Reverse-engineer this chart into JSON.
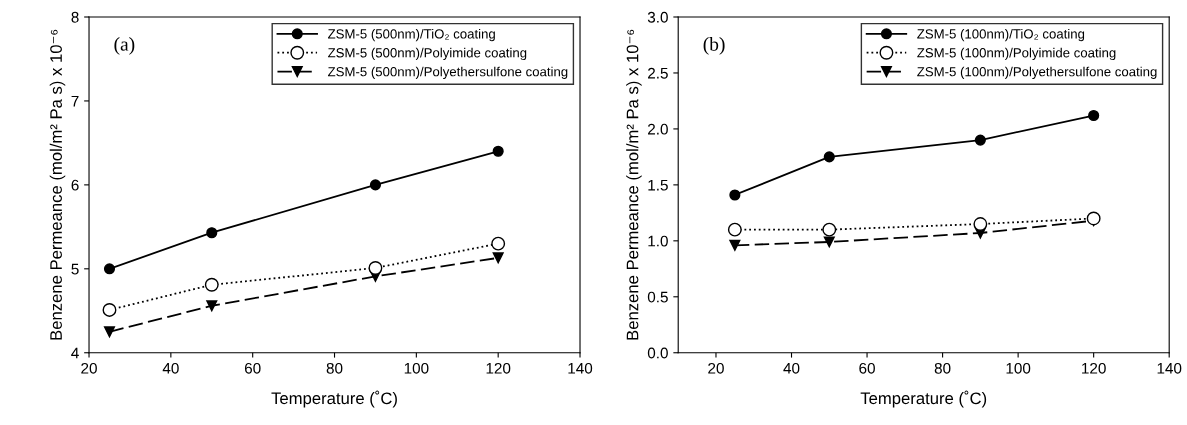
{
  "chart_data": [
    {
      "type": "line",
      "annotations": [
        "(a)"
      ],
      "xlabel": "Temperature (˚C)",
      "ylabel": "Benzene Permeance (mol/m² Pa s) x 10⁻⁶",
      "x": [
        25,
        50,
        90,
        120
      ],
      "xlim": [
        20,
        140
      ],
      "xticks": [
        20,
        40,
        60,
        80,
        100,
        120,
        140
      ],
      "ylim": [
        4,
        8
      ],
      "yticks": [
        4,
        5,
        6,
        7,
        8
      ],
      "grid": false,
      "legend": "top right",
      "series": [
        {
          "name": "ZSM-5 (500nm)/TiO₂ coating",
          "color": "#000000",
          "marker": "circle",
          "line_style": "solid",
          "values": [
            5.0,
            5.43,
            6.0,
            6.4
          ]
        },
        {
          "name": "ZSM-5 (500nm)/Polyimide coating",
          "color": "#000000",
          "marker": "circle",
          "line_style": "dotted",
          "values": [
            4.51,
            4.81,
            5.01,
            5.3
          ]
        },
        {
          "name": "ZSM-5 (500nm)/Polyethersulfone coating",
          "color": "#000000",
          "marker": "triangle",
          "line_style": "dashed",
          "values": [
            4.25,
            4.56,
            4.91,
            5.13
          ]
        }
      ]
    },
    {
      "type": "line",
      "annotations": [
        "(b)"
      ],
      "xlabel": "Temperature (˚C)",
      "ylabel": "Benzene Permeance (mol/m² Pa s) x 10⁻⁶",
      "x": [
        25,
        50,
        90,
        120
      ],
      "xlim": [
        10,
        140
      ],
      "xticks": [
        20,
        40,
        60,
        80,
        100,
        120,
        140
      ],
      "ylim": [
        0,
        3
      ],
      "yticks": [
        {
          "value": 0,
          "label": "0.0"
        },
        0.5,
        {
          "value": 1,
          "label": "1.0"
        },
        1.5,
        {
          "value": 2,
          "label": "2.0"
        },
        2.5,
        {
          "value": 3,
          "label": "3.0"
        }
      ],
      "grid": false,
      "legend": "top right",
      "series": [
        {
          "name": "ZSM-5 (100nm)/TiO₂ coating",
          "color": "#000000",
          "marker": "circle",
          "line_style": "solid",
          "values": [
            1.41,
            1.75,
            1.9,
            2.12
          ]
        },
        {
          "name": "ZSM-5 (100nm)/Polyimide coating",
          "color": "#000000",
          "marker": "circle",
          "line_style": "dotted",
          "values": [
            1.1,
            1.1,
            1.15,
            1.2
          ]
        },
        {
          "name": "ZSM-5 (100nm)/Polyethersulfone coating",
          "color": "#000000",
          "marker": "triangle",
          "line_style": "dashed",
          "values": [
            0.96,
            0.99,
            1.07,
            1.18
          ]
        }
      ]
    }
  ]
}
